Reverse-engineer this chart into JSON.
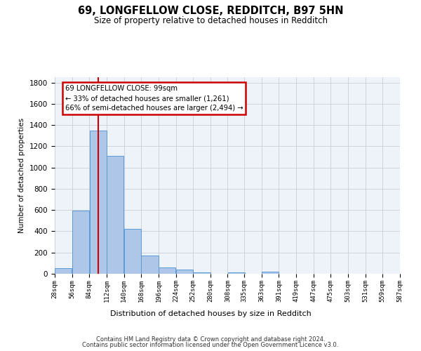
{
  "title_line1": "69, LONGFELLOW CLOSE, REDDITCH, B97 5HN",
  "title_line2": "Size of property relative to detached houses in Redditch",
  "xlabel": "Distribution of detached houses by size in Redditch",
  "ylabel": "Number of detached properties",
  "footer_line1": "Contains HM Land Registry data © Crown copyright and database right 2024.",
  "footer_line2": "Contains public sector information licensed under the Open Government Licence v3.0.",
  "annotation_title": "69 LONGFELLOW CLOSE: 99sqm",
  "annotation_line2": "← 33% of detached houses are smaller (1,261)",
  "annotation_line3": "66% of semi-detached houses are larger (2,494) →",
  "bar_left_edges": [
    28,
    56,
    84,
    112,
    140,
    168,
    196,
    224,
    252,
    280,
    308,
    335,
    363,
    391,
    419,
    447,
    475,
    503,
    531,
    559
  ],
  "bar_heights": [
    55,
    595,
    1345,
    1110,
    425,
    170,
    60,
    40,
    15,
    0,
    15,
    0,
    20,
    0,
    0,
    0,
    0,
    0,
    0,
    0
  ],
  "bin_width": 28,
  "bar_color": "#aec6e8",
  "bar_edge_color": "#5a9ad4",
  "vline_x": 99,
  "vline_color": "#cc0000",
  "ylim": [
    0,
    1850
  ],
  "yticks": [
    0,
    200,
    400,
    600,
    800,
    1000,
    1200,
    1400,
    1600,
    1800
  ],
  "xtick_labels": [
    "28sqm",
    "56sqm",
    "84sqm",
    "112sqm",
    "140sqm",
    "168sqm",
    "196sqm",
    "224sqm",
    "252sqm",
    "280sqm",
    "308sqm",
    "335sqm",
    "363sqm",
    "391sqm",
    "419sqm",
    "447sqm",
    "475sqm",
    "503sqm",
    "531sqm",
    "559sqm",
    "587sqm"
  ],
  "annotation_box_color": "#cc0000",
  "bg_color": "#eef2f9",
  "grid_color": "#c8cdd8",
  "fig_width": 6.0,
  "fig_height": 5.0,
  "dpi": 100
}
